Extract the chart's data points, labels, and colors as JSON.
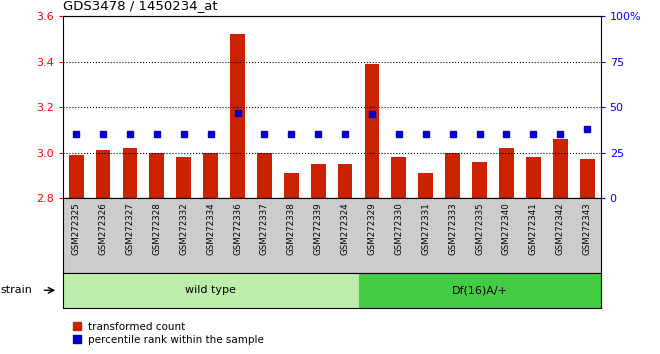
{
  "title": "GDS3478 / 1450234_at",
  "samples": [
    "GSM272325",
    "GSM272326",
    "GSM272327",
    "GSM272328",
    "GSM272332",
    "GSM272334",
    "GSM272336",
    "GSM272337",
    "GSM272338",
    "GSM272339",
    "GSM272324",
    "GSM272329",
    "GSM272330",
    "GSM272331",
    "GSM272333",
    "GSM272335",
    "GSM272340",
    "GSM272341",
    "GSM272342",
    "GSM272343"
  ],
  "red_values": [
    2.99,
    3.01,
    3.02,
    3.0,
    2.98,
    3.0,
    3.52,
    3.0,
    2.91,
    2.95,
    2.95,
    3.39,
    2.98,
    2.91,
    3.0,
    2.96,
    3.02,
    2.98,
    3.06,
    2.97
  ],
  "blue_percentiles": [
    35,
    35,
    35,
    35,
    35,
    35,
    47,
    35,
    35,
    35,
    35,
    46,
    35,
    35,
    35,
    35,
    35,
    35,
    35,
    38
  ],
  "wild_type_count": 11,
  "df16_count": 9,
  "ylim_left": [
    2.8,
    3.6
  ],
  "ylim_right": [
    0,
    100
  ],
  "yticks_left": [
    2.8,
    3.0,
    3.2,
    3.4,
    3.6
  ],
  "yticks_right": [
    0,
    25,
    50,
    75,
    100
  ],
  "bar_color": "#CC2200",
  "dot_color": "#0000CC",
  "wild_type_bg": "#BBEEAA",
  "df16_bg": "#44CC44",
  "label_bg": "#CCCCCC",
  "legend_items": [
    "transformed count",
    "percentile rank within the sample"
  ]
}
